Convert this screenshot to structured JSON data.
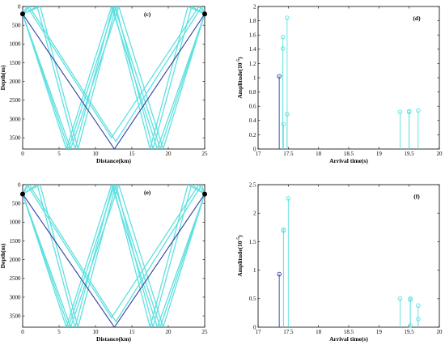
{
  "chart_data": [
    {
      "type": "line",
      "panel_label": "(c)",
      "xlabel": "Distance(km)",
      "ylabel": "Depth(m)",
      "xlim": [
        0,
        25
      ],
      "ylim": [
        3800,
        0
      ],
      "x_ticks": [
        0,
        5,
        10,
        15,
        20,
        25
      ],
      "y_ticks": [
        0,
        500,
        1000,
        1500,
        2000,
        2500,
        3000,
        3500
      ],
      "source": {
        "x": 0,
        "y": 200
      },
      "receiver": {
        "x": 25,
        "y": 200
      },
      "direct_ray_color": "#2e3d9e",
      "multipath_color": "#5fe0e0",
      "direct_ray": [
        [
          0,
          200
        ],
        [
          12.6,
          3800
        ],
        [
          25,
          200
        ]
      ],
      "multipath_rays": [
        [
          [
            0,
            200
          ],
          [
            6.3,
            3800
          ],
          [
            12.6,
            0
          ],
          [
            18.9,
            3800
          ],
          [
            25,
            200
          ]
        ],
        [
          [
            0,
            200
          ],
          [
            6.6,
            3800
          ],
          [
            13.2,
            0
          ],
          [
            19.3,
            3800
          ],
          [
            25,
            200
          ]
        ],
        [
          [
            0,
            200
          ],
          [
            6.0,
            3800
          ],
          [
            12.2,
            0
          ],
          [
            18.5,
            3800
          ],
          [
            25,
            200
          ]
        ],
        [
          [
            0,
            200
          ],
          [
            2.4,
            0
          ],
          [
            7.6,
            3800
          ],
          [
            12.8,
            0
          ],
          [
            17.9,
            3800
          ],
          [
            23.2,
            0
          ],
          [
            25,
            200
          ]
        ],
        [
          [
            0,
            200
          ],
          [
            2.0,
            0
          ],
          [
            7.2,
            3800
          ],
          [
            12.4,
            0
          ],
          [
            17.5,
            3800
          ],
          [
            22.7,
            0
          ],
          [
            25,
            200
          ]
        ],
        [
          [
            0,
            200
          ],
          [
            0.6,
            0
          ],
          [
            12.2,
            3500
          ],
          [
            24.2,
            0
          ],
          [
            25,
            200
          ]
        ],
        [
          [
            0,
            200
          ],
          [
            0.9,
            0
          ],
          [
            12.8,
            3600
          ],
          [
            24.6,
            0
          ],
          [
            25,
            200
          ]
        ]
      ]
    },
    {
      "type": "stem",
      "panel_label": "(d)",
      "xlabel": "Arrival time(s)",
      "ylabel": "Amplitude(10^-5)",
      "xlim": [
        17,
        20
      ],
      "ylim": [
        0,
        2
      ],
      "x_ticks": [
        17,
        17.5,
        18,
        18.5,
        19,
        19.5,
        20
      ],
      "y_ticks": [
        0,
        0.2,
        0.4,
        0.6,
        0.8,
        1,
        1.2,
        1.4,
        1.6,
        1.8,
        2
      ],
      "series": [
        {
          "color": "#2e3d9e",
          "points": [
            [
              17.35,
              1.02
            ]
          ]
        },
        {
          "color": "#5fe0e0",
          "points": [
            [
              17.41,
              1.57
            ],
            [
              17.41,
              1.41
            ],
            [
              17.42,
              0.35
            ],
            [
              17.48,
              1.84
            ],
            [
              17.48,
              0.49
            ],
            [
              19.35,
              0.52
            ],
            [
              19.5,
              0.53
            ],
            [
              19.5,
              0.52
            ],
            [
              19.65,
              0.54
            ]
          ]
        }
      ]
    },
    {
      "type": "line",
      "panel_label": "(e)",
      "xlabel": "Distance(km)",
      "ylabel": "Depth(m)",
      "xlim": [
        0,
        25
      ],
      "ylim": [
        3800,
        0
      ],
      "x_ticks": [
        0,
        5,
        10,
        15,
        20,
        25
      ],
      "y_ticks": [
        0,
        500,
        1000,
        1500,
        2000,
        2500,
        3000,
        3500
      ],
      "source": {
        "x": 0,
        "y": 250
      },
      "receiver": {
        "x": 25,
        "y": 250
      },
      "direct_ray_color": "#2e3d9e",
      "multipath_color": "#5fe0e0",
      "direct_ray": [
        [
          0,
          250
        ],
        [
          12.6,
          3800
        ],
        [
          25,
          250
        ]
      ],
      "multipath_rays": [
        [
          [
            0,
            250
          ],
          [
            6.3,
            3800
          ],
          [
            12.6,
            0
          ],
          [
            18.9,
            3800
          ],
          [
            25,
            250
          ]
        ],
        [
          [
            0,
            250
          ],
          [
            6.6,
            3800
          ],
          [
            13.2,
            0
          ],
          [
            19.3,
            3800
          ],
          [
            25,
            250
          ]
        ],
        [
          [
            0,
            250
          ],
          [
            6.0,
            3800
          ],
          [
            12.2,
            0
          ],
          [
            18.5,
            3800
          ],
          [
            25,
            250
          ]
        ],
        [
          [
            0,
            250
          ],
          [
            2.4,
            0
          ],
          [
            7.6,
            3800
          ],
          [
            12.8,
            0
          ],
          [
            17.9,
            3800
          ],
          [
            23.2,
            0
          ],
          [
            25,
            250
          ]
        ],
        [
          [
            0,
            250
          ],
          [
            2.0,
            0
          ],
          [
            7.2,
            3800
          ],
          [
            12.4,
            0
          ],
          [
            17.5,
            3800
          ],
          [
            22.7,
            0
          ],
          [
            25,
            250
          ]
        ],
        [
          [
            0,
            250
          ],
          [
            0.6,
            0
          ],
          [
            12.2,
            3550
          ],
          [
            24.2,
            0
          ],
          [
            25,
            250
          ]
        ],
        [
          [
            0,
            250
          ],
          [
            0.9,
            0
          ],
          [
            12.8,
            3650
          ],
          [
            24.6,
            0
          ],
          [
            25,
            250
          ]
        ]
      ]
    },
    {
      "type": "stem",
      "panel_label": "(f)",
      "xlabel": "Arrival time(s)",
      "ylabel": "Amplitude(10^-5)",
      "xlim": [
        17,
        20
      ],
      "ylim": [
        0,
        2.5
      ],
      "x_ticks": [
        17,
        17.5,
        18,
        18.5,
        19,
        19.5,
        20
      ],
      "y_ticks": [
        0,
        0.5,
        1,
        1.5,
        2,
        2.5
      ],
      "series": [
        {
          "color": "#2e3d9e",
          "points": [
            [
              17.35,
              0.93
            ]
          ]
        },
        {
          "color": "#5fe0e0",
          "points": [
            [
              17.42,
              1.71
            ],
            [
              17.42,
              1.69
            ],
            [
              17.5,
              2.26
            ],
            [
              19.35,
              0.5
            ],
            [
              19.52,
              0.5
            ],
            [
              19.52,
              0.48
            ],
            [
              19.52,
              0.03
            ],
            [
              19.65,
              0.38
            ],
            [
              19.65,
              0.14
            ]
          ]
        }
      ]
    }
  ]
}
